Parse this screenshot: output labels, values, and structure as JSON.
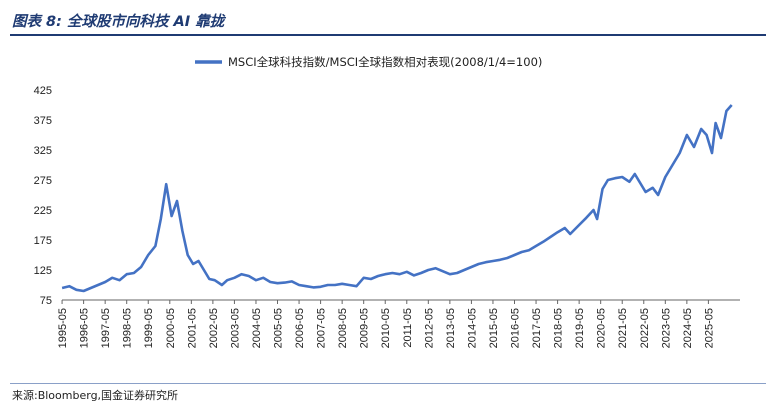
{
  "figure_title": "图表 8:  全球股市向科技 AI 靠拢",
  "source_note": "来源:Bloomberg,国金证券研究所",
  "colors": {
    "line": "#4472c4",
    "title": "#1f3b73",
    "axis": "#666666"
  },
  "chart_data": {
    "type": "line",
    "title": "",
    "xlabel": "",
    "ylabel": "",
    "ylim": [
      75,
      425
    ],
    "yticks": [
      75,
      125,
      175,
      225,
      275,
      325,
      375,
      425
    ],
    "xlim": [
      1995.33,
      2026.8
    ],
    "xticks": [
      "1995-05",
      "1996-05",
      "1997-05",
      "1998-05",
      "1999-05",
      "2000-05",
      "2001-05",
      "2002-05",
      "2003-05",
      "2004-05",
      "2005-05",
      "2006-05",
      "2007-05",
      "2008-05",
      "2009-05",
      "2010-05",
      "2011-05",
      "2012-05",
      "2013-05",
      "2014-05",
      "2015-05",
      "2016-05",
      "2017-05",
      "2018-05",
      "2019-05",
      "2020-05",
      "2021-05",
      "2022-05",
      "2023-05",
      "2024-05",
      "2025-05"
    ],
    "legend_position": "top-center",
    "grid": false,
    "series": [
      {
        "name": "MSCI全球科技指数/MSCI全球指数相对表现(2008/1/4=100)",
        "x": [
          "1995-05",
          "1995-09",
          "1996-01",
          "1996-05",
          "1996-09",
          "1997-01",
          "1997-05",
          "1997-09",
          "1998-01",
          "1998-05",
          "1998-09",
          "1999-01",
          "1999-05",
          "1999-09",
          "1999-12",
          "2000-03",
          "2000-06",
          "2000-09",
          "2000-12",
          "2001-03",
          "2001-06",
          "2001-09",
          "2001-12",
          "2002-03",
          "2002-06",
          "2002-10",
          "2003-01",
          "2003-05",
          "2003-09",
          "2004-01",
          "2004-05",
          "2004-09",
          "2005-01",
          "2005-05",
          "2005-09",
          "2006-01",
          "2006-05",
          "2006-09",
          "2007-01",
          "2007-05",
          "2007-09",
          "2008-01",
          "2008-05",
          "2008-09",
          "2009-01",
          "2009-05",
          "2009-09",
          "2010-01",
          "2010-05",
          "2010-09",
          "2011-01",
          "2011-05",
          "2011-09",
          "2012-01",
          "2012-05",
          "2012-09",
          "2013-01",
          "2013-05",
          "2013-09",
          "2014-01",
          "2014-05",
          "2014-09",
          "2015-01",
          "2015-05",
          "2015-09",
          "2016-01",
          "2016-05",
          "2016-09",
          "2017-01",
          "2017-05",
          "2017-09",
          "2018-01",
          "2018-05",
          "2018-09",
          "2018-12",
          "2019-05",
          "2019-09",
          "2020-01",
          "2020-03",
          "2020-06",
          "2020-09",
          "2021-01",
          "2021-05",
          "2021-09",
          "2021-12",
          "2022-03",
          "2022-06",
          "2022-10",
          "2023-01",
          "2023-05",
          "2023-09",
          "2024-01",
          "2024-05",
          "2024-09",
          "2025-01",
          "2025-04",
          "2025-07",
          "2025-09",
          "2025-12",
          "2026-03",
          "2026-06"
        ],
        "values": [
          95,
          98,
          92,
          90,
          95,
          100,
          105,
          112,
          108,
          118,
          120,
          130,
          150,
          165,
          210,
          268,
          215,
          240,
          190,
          150,
          135,
          140,
          125,
          110,
          108,
          100,
          108,
          112,
          118,
          115,
          108,
          112,
          105,
          103,
          104,
          106,
          100,
          98,
          96,
          97,
          100,
          100,
          102,
          100,
          98,
          112,
          110,
          115,
          118,
          120,
          118,
          122,
          116,
          120,
          125,
          128,
          123,
          118,
          120,
          125,
          130,
          135,
          138,
          140,
          142,
          145,
          150,
          155,
          158,
          165,
          172,
          180,
          188,
          195,
          185,
          200,
          212,
          225,
          210,
          260,
          275,
          278,
          280,
          272,
          285,
          270,
          255,
          262,
          250,
          280,
          300,
          320,
          350,
          330,
          360,
          350,
          320,
          370,
          345,
          390,
          400
        ]
      }
    ]
  }
}
